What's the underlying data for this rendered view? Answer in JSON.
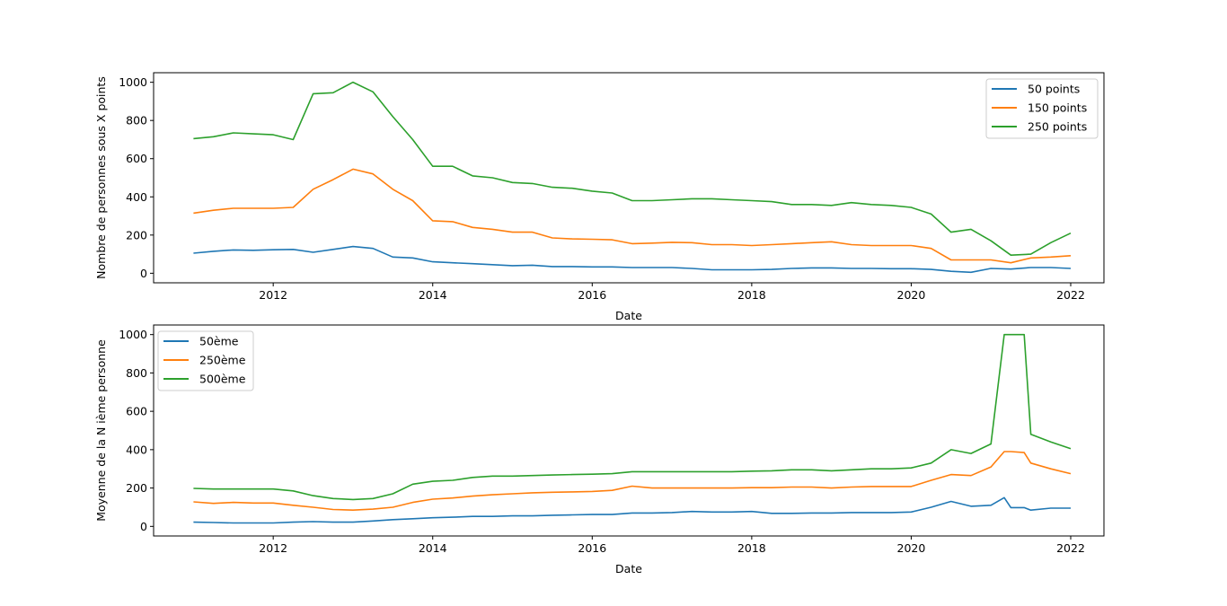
{
  "colors": {
    "blue": "#1f77b4",
    "orange": "#ff7f0e",
    "green": "#2ca02c",
    "axes": "#000000",
    "background": "#ffffff"
  },
  "chart_data": [
    {
      "type": "line",
      "title": "",
      "xlabel": "Date",
      "ylabel": "Nombre de personnes sous X points",
      "xlim": [
        "2010-07-01",
        "2022-06-01"
      ],
      "ylim": [
        -50,
        1050
      ],
      "xticks": [
        "2012",
        "2014",
        "2016",
        "2018",
        "2020",
        "2022"
      ],
      "yticks": [
        "0",
        "200",
        "400",
        "600",
        "800",
        "1000"
      ],
      "grid": false,
      "legend_position": "upper right",
      "x": [
        "2011-01",
        "2011-04",
        "2011-07",
        "2011-10",
        "2012-01",
        "2012-04",
        "2012-07",
        "2012-10",
        "2013-01",
        "2013-04",
        "2013-07",
        "2013-10",
        "2014-01",
        "2014-04",
        "2014-07",
        "2014-10",
        "2015-01",
        "2015-04",
        "2015-07",
        "2015-10",
        "2016-01",
        "2016-04",
        "2016-07",
        "2016-10",
        "2017-01",
        "2017-04",
        "2017-07",
        "2017-10",
        "2018-01",
        "2018-04",
        "2018-07",
        "2018-10",
        "2019-01",
        "2019-04",
        "2019-07",
        "2019-10",
        "2020-01",
        "2020-04",
        "2020-07",
        "2020-10",
        "2021-01",
        "2021-04",
        "2021-07",
        "2021-10",
        "2022-01"
      ],
      "series": [
        {
          "name": "50 points",
          "color": "#1f77b4",
          "values": [
            105,
            115,
            122,
            120,
            123,
            125,
            110,
            125,
            140,
            130,
            85,
            80,
            60,
            55,
            50,
            45,
            40,
            42,
            35,
            35,
            33,
            33,
            30,
            30,
            30,
            25,
            18,
            18,
            18,
            20,
            25,
            28,
            28,
            25,
            25,
            24,
            24,
            20,
            10,
            5,
            25,
            22,
            30,
            30,
            25
          ]
        },
        {
          "name": "150 points",
          "color": "#ff7f0e",
          "values": [
            315,
            330,
            340,
            340,
            340,
            345,
            440,
            490,
            545,
            520,
            440,
            380,
            275,
            270,
            240,
            230,
            215,
            215,
            185,
            180,
            178,
            175,
            155,
            158,
            162,
            160,
            150,
            150,
            145,
            150,
            155,
            160,
            165,
            150,
            145,
            145,
            145,
            130,
            70,
            70,
            70,
            55,
            80,
            85,
            92
          ]
        },
        {
          "name": "250 points",
          "color": "#2ca02c",
          "values": [
            705,
            715,
            735,
            730,
            725,
            700,
            940,
            945,
            1000,
            950,
            820,
            700,
            560,
            560,
            510,
            500,
            475,
            470,
            450,
            445,
            430,
            420,
            380,
            380,
            385,
            390,
            390,
            385,
            380,
            375,
            360,
            360,
            355,
            370,
            360,
            355,
            345,
            310,
            215,
            230,
            170,
            95,
            100,
            160,
            210
          ]
        }
      ]
    },
    {
      "type": "line",
      "title": "",
      "xlabel": "Date",
      "ylabel": "Moyenne de la N ième personne",
      "xlim": [
        "2010-07-01",
        "2022-06-01"
      ],
      "ylim": [
        -50,
        1050
      ],
      "xticks": [
        "2012",
        "2014",
        "2016",
        "2018",
        "2020",
        "2022"
      ],
      "yticks": [
        "0",
        "200",
        "400",
        "600",
        "800",
        "1000"
      ],
      "grid": false,
      "legend_position": "upper left",
      "x": [
        "2011-01",
        "2011-04",
        "2011-07",
        "2011-10",
        "2012-01",
        "2012-04",
        "2012-07",
        "2012-10",
        "2013-01",
        "2013-04",
        "2013-07",
        "2013-10",
        "2014-01",
        "2014-04",
        "2014-07",
        "2014-10",
        "2015-01",
        "2015-04",
        "2015-07",
        "2015-10",
        "2016-01",
        "2016-04",
        "2016-07",
        "2016-10",
        "2017-01",
        "2017-04",
        "2017-07",
        "2017-10",
        "2018-01",
        "2018-04",
        "2018-07",
        "2018-10",
        "2019-01",
        "2019-04",
        "2019-07",
        "2019-10",
        "2020-01",
        "2020-04",
        "2020-07",
        "2020-10",
        "2021-01",
        "2021-03",
        "2021-04",
        "2021-06",
        "2021-07",
        "2021-10",
        "2022-01"
      ],
      "series": [
        {
          "name": "50ème",
          "color": "#1f77b4",
          "values": [
            22,
            20,
            18,
            18,
            18,
            22,
            25,
            22,
            22,
            28,
            35,
            40,
            45,
            48,
            52,
            52,
            55,
            55,
            58,
            60,
            62,
            62,
            70,
            70,
            72,
            78,
            75,
            75,
            78,
            68,
            68,
            70,
            70,
            72,
            72,
            72,
            75,
            100,
            130,
            105,
            110,
            150,
            98,
            98,
            85,
            95,
            95
          ]
        },
        {
          "name": "250ème",
          "color": "#ff7f0e",
          "values": [
            128,
            120,
            125,
            122,
            122,
            110,
            100,
            88,
            85,
            90,
            100,
            125,
            142,
            148,
            158,
            165,
            170,
            175,
            178,
            180,
            182,
            188,
            210,
            200,
            200,
            200,
            200,
            200,
            202,
            202,
            205,
            205,
            200,
            205,
            208,
            208,
            208,
            240,
            270,
            265,
            310,
            390,
            390,
            385,
            330,
            300,
            275
          ]
        },
        {
          "name": "500ème",
          "color": "#2ca02c",
          "values": [
            198,
            195,
            195,
            195,
            195,
            185,
            160,
            145,
            140,
            145,
            170,
            220,
            235,
            240,
            255,
            262,
            262,
            265,
            268,
            270,
            272,
            275,
            285,
            285,
            285,
            285,
            285,
            285,
            288,
            290,
            295,
            295,
            290,
            295,
            300,
            300,
            305,
            330,
            400,
            380,
            430,
            1000,
            1000,
            1000,
            480,
            440,
            405
          ]
        }
      ]
    }
  ]
}
